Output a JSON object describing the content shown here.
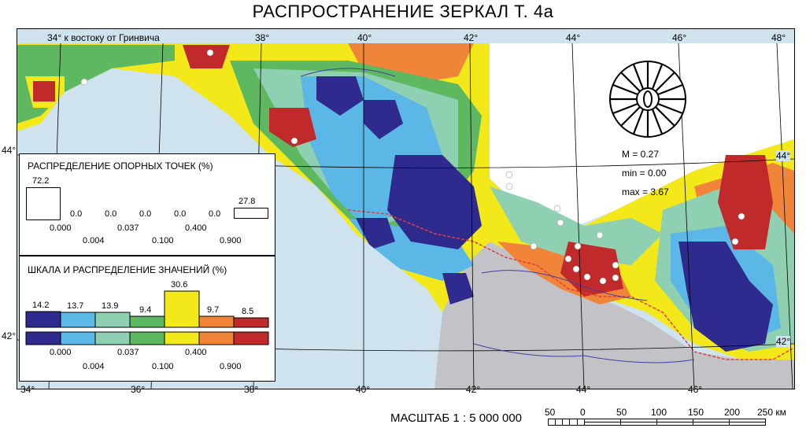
{
  "title": "РАСПРОСТРАНЕНИЕ ЗЕРКАЛ Т. 4а",
  "longitude_top": [
    "34° к востоку от Гринвича",
    "38°",
    "40°",
    "42°",
    "44°",
    "46°",
    "48°"
  ],
  "longitude_bottom": [
    "34°",
    "36°",
    "38°",
    "40°",
    "42°",
    "44°",
    "46°"
  ],
  "latitude_left": [
    "44°",
    "42°"
  ],
  "latitude_right": [
    "44°",
    "42°"
  ],
  "colors": {
    "sea": "#cfe3ee",
    "land_gray": "#c3c3c7",
    "c1": "#2e2a8e",
    "c2": "#5ab7e6",
    "c3": "#8fd0b2",
    "c4": "#5db860",
    "c5": "#f2e81a",
    "c6": "#f0853a",
    "c7": "#c12a2a",
    "border": "#e04040"
  },
  "stats": {
    "M": "M = 0.27",
    "min": "min = 0.00",
    "max": "max = 3.67"
  },
  "distribution_panel": {
    "title": "РАСПРЕДЕЛЕНИЕ ОПОРНЫХ ТОЧЕК (%)",
    "bars": [
      "72.2",
      "0.0",
      "0.0",
      "0.0",
      "0.0",
      "0.0",
      "27.8"
    ],
    "ticks_top": [
      "0.000",
      "0.037",
      "0.400"
    ],
    "ticks_bottom": [
      "0.004",
      "0.100",
      "0.900"
    ]
  },
  "scale_panel": {
    "title": "ШКАЛА И РАСПРЕДЕЛЕНИЕ ЗНАЧЕНИЙ (%)",
    "bars": [
      "14.2",
      "13.7",
      "13.9",
      "9.4",
      "30.6",
      "9.7",
      "8.5"
    ],
    "ticks_top": [
      "0.000",
      "0.037",
      "0.400"
    ],
    "ticks_bottom": [
      "0.004",
      "0.100",
      "0.900"
    ]
  },
  "scale_bar": {
    "label": "МАСШТАБ 1 : 5 000 000",
    "ticks": [
      "50",
      "0",
      "50",
      "100",
      "150",
      "200",
      "250 км"
    ]
  }
}
